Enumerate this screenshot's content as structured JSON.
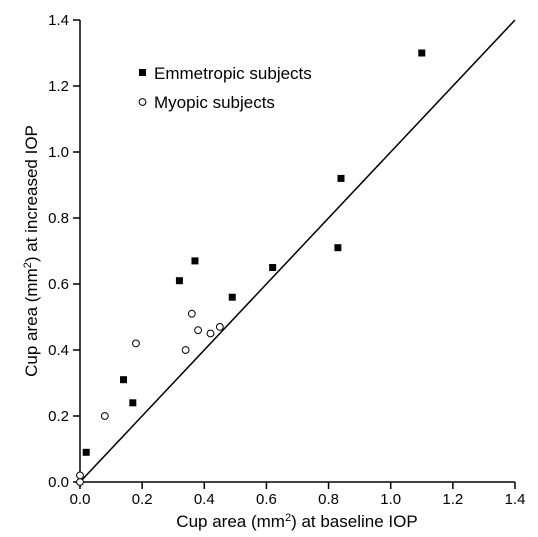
{
  "chart_data": {
    "type": "scatter",
    "xlabel": {
      "pre": "Cup area (mm",
      "sup": "2",
      "post": ") at baseline IOP"
    },
    "ylabel": {
      "pre": "Cup area (mm",
      "sup": "2",
      "post": ") at increased IOP"
    },
    "xlim": [
      0,
      1.4
    ],
    "ylim": [
      0,
      1.4
    ],
    "xticks": [
      "0.0",
      "0.2",
      "0.4",
      "0.6",
      "0.8",
      "1.0",
      "1.2",
      "1.4"
    ],
    "yticks": [
      "0.0",
      "0.2",
      "0.4",
      "0.6",
      "0.8",
      "1.0",
      "1.2",
      "1.4"
    ],
    "grid": false,
    "legend_position": "top-left",
    "reference_line": {
      "type": "identity",
      "from": [
        0,
        0
      ],
      "to": [
        1.4,
        1.4
      ]
    },
    "series": [
      {
        "name": "Emmetropic subjects",
        "marker": "filled-square",
        "color": "#000000",
        "points": [
          [
            0.02,
            0.09
          ],
          [
            0.14,
            0.31
          ],
          [
            0.17,
            0.24
          ],
          [
            0.32,
            0.61
          ],
          [
            0.37,
            0.67
          ],
          [
            0.49,
            0.56
          ],
          [
            0.62,
            0.65
          ],
          [
            0.83,
            0.71
          ],
          [
            0.84,
            0.92
          ],
          [
            1.1,
            1.3
          ]
        ]
      },
      {
        "name": "Myopic subjects",
        "marker": "open-circle",
        "color": "#000000",
        "points": [
          [
            0.0,
            0.0
          ],
          [
            0.0,
            0.02
          ],
          [
            0.08,
            0.2
          ],
          [
            0.18,
            0.42
          ],
          [
            0.34,
            0.4
          ],
          [
            0.36,
            0.51
          ],
          [
            0.38,
            0.46
          ],
          [
            0.42,
            0.45
          ],
          [
            0.45,
            0.47
          ]
        ]
      }
    ]
  }
}
